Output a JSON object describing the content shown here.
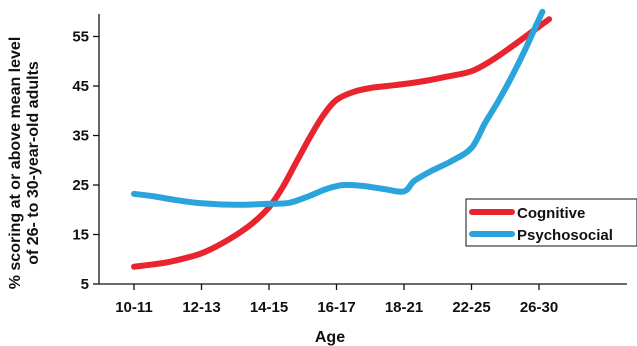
{
  "chart_data": {
    "type": "line",
    "categories": [
      "10-11",
      "12-13",
      "14-15",
      "16-17",
      "18-21",
      "22-25",
      "26-30"
    ],
    "xlabel": "Age",
    "ylabel_lines": [
      "% scoring at or above mean level",
      "of 26- to 30-year-old adults"
    ],
    "yticks": [
      5,
      15,
      25,
      35,
      45,
      55
    ],
    "ylim": [
      5,
      60
    ],
    "grid": false,
    "legend_position": "right",
    "series": [
      {
        "name": "Cognitive",
        "color": "#e8252f",
        "points": [
          [
            0,
            8.5
          ],
          [
            0.25,
            8.9
          ],
          [
            0.5,
            9.4
          ],
          [
            0.75,
            10.2
          ],
          [
            1,
            11.2
          ],
          [
            1.25,
            12.8
          ],
          [
            1.5,
            14.8
          ],
          [
            1.75,
            17.2
          ],
          [
            2,
            20.5
          ],
          [
            2.2,
            24.5
          ],
          [
            2.4,
            29.5
          ],
          [
            2.6,
            34.5
          ],
          [
            2.8,
            39.0
          ],
          [
            3,
            42.2
          ],
          [
            3.25,
            43.8
          ],
          [
            3.5,
            44.6
          ],
          [
            3.75,
            45.0
          ],
          [
            4,
            45.4
          ],
          [
            4.3,
            46.0
          ],
          [
            4.6,
            46.8
          ],
          [
            5,
            48.0
          ],
          [
            5.3,
            50.2
          ],
          [
            5.6,
            53.0
          ],
          [
            5.85,
            55.5
          ],
          [
            6.05,
            57.5
          ],
          [
            6.15,
            58.5
          ]
        ]
      },
      {
        "name": "Psychosocial",
        "color": "#2ba4dc",
        "points": [
          [
            0,
            23.2
          ],
          [
            0.3,
            22.7
          ],
          [
            0.6,
            22.0
          ],
          [
            1,
            21.3
          ],
          [
            1.5,
            21.0
          ],
          [
            2,
            21.2
          ],
          [
            2.3,
            21.4
          ],
          [
            2.6,
            22.8
          ],
          [
            2.85,
            24.2
          ],
          [
            3.1,
            25.0
          ],
          [
            3.4,
            24.8
          ],
          [
            3.7,
            24.2
          ],
          [
            4,
            23.7
          ],
          [
            4.15,
            25.8
          ],
          [
            4.4,
            27.8
          ],
          [
            4.7,
            29.8
          ],
          [
            5,
            32.5
          ],
          [
            5.2,
            37.5
          ],
          [
            5.4,
            42.0
          ],
          [
            5.6,
            47.0
          ],
          [
            5.8,
            52.5
          ],
          [
            5.95,
            57.0
          ],
          [
            6.05,
            60.0
          ]
        ]
      }
    ]
  }
}
